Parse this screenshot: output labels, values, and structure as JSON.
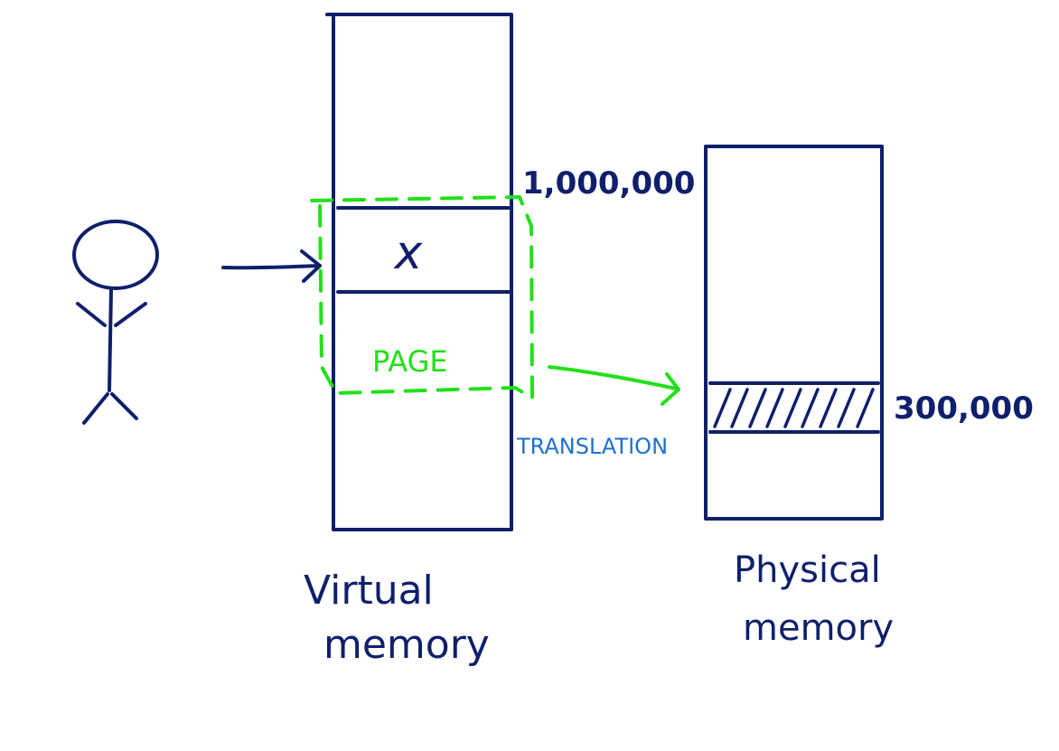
{
  "colors": {
    "ink": "#0f1f6b",
    "page": "#22e01a",
    "translation": "#1e6fd0",
    "background": "#ffffff"
  },
  "icons": {
    "user": "stick-figure-icon"
  },
  "virtual_memory": {
    "label_line1": "Virtual",
    "label_line2": "memory",
    "address": "1,000,000",
    "variable": "x"
  },
  "page": {
    "label": "PAGE"
  },
  "translation": {
    "label": "TRANSLATION"
  },
  "physical_memory": {
    "label_line1": "Physical",
    "label_line2": "memory",
    "address": "300,000"
  }
}
